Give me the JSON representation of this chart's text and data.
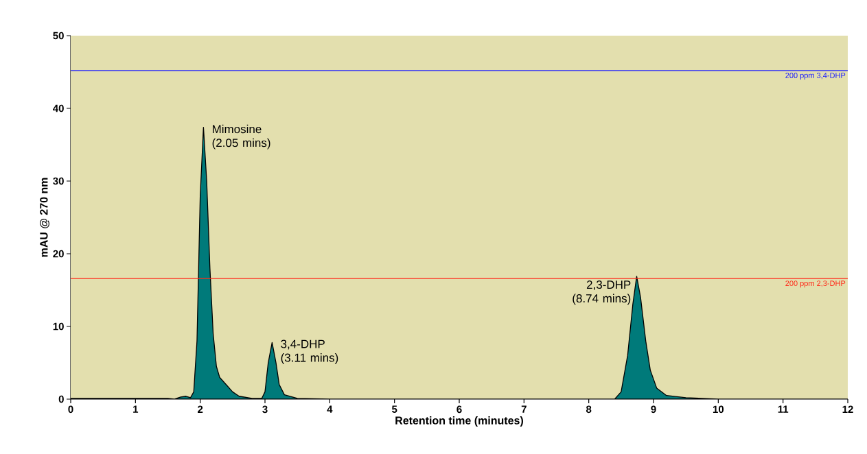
{
  "chart_data": {
    "type": "area",
    "xlabel": "Retention time (minutes)",
    "ylabel": "mAU @ 270 nm",
    "xlim": [
      0,
      12
    ],
    "ylim": [
      0,
      50
    ],
    "xticks": [
      0,
      1,
      2,
      3,
      4,
      5,
      6,
      7,
      8,
      9,
      10,
      11,
      12
    ],
    "yticks": [
      0,
      10,
      20,
      30,
      40,
      50
    ],
    "series": [
      {
        "color": "#007a7a",
        "x": [
          0,
          1.5,
          1.6,
          1.7,
          1.78,
          1.85,
          1.9,
          1.95,
          2.0,
          2.05,
          2.1,
          2.15,
          2.2,
          2.25,
          2.3,
          2.4,
          2.5,
          2.6,
          2.8,
          2.95,
          3.0,
          3.05,
          3.11,
          3.17,
          3.22,
          3.3,
          3.5,
          4,
          8.4,
          8.5,
          8.6,
          8.68,
          8.74,
          8.8,
          8.88,
          8.95,
          9.05,
          9.2,
          9.5,
          10,
          12
        ],
        "values": [
          0.1,
          0.1,
          0,
          0.3,
          0.4,
          0.2,
          1,
          8,
          28,
          37.4,
          30,
          18,
          9,
          4.5,
          3,
          2,
          1,
          0.4,
          0.1,
          0.1,
          1,
          5,
          7.8,
          5,
          2,
          0.6,
          0.1,
          0,
          0,
          1,
          6,
          13,
          16.9,
          14,
          8,
          4,
          1.5,
          0.5,
          0.2,
          0,
          0
        ]
      }
    ],
    "ref_lines": [
      {
        "axis": "y",
        "value": 45.2,
        "label": "200 ppm 3,4-DHP",
        "color": "#1a1aff"
      },
      {
        "axis": "y",
        "value": 16.6,
        "label": "200 ppm 2,3-DHP",
        "color": "#ff2a1a"
      }
    ],
    "annotations": [
      {
        "text": "Mimosine (2.05 mins)",
        "x": 2.05,
        "y": 37.4
      },
      {
        "text": "3,4-DHP (3.11 mins)",
        "x": 3.11,
        "y": 7.8
      },
      {
        "text": "2,3-DHP (8.74 mins)",
        "x": 8.74,
        "y": 16.9
      }
    ]
  }
}
